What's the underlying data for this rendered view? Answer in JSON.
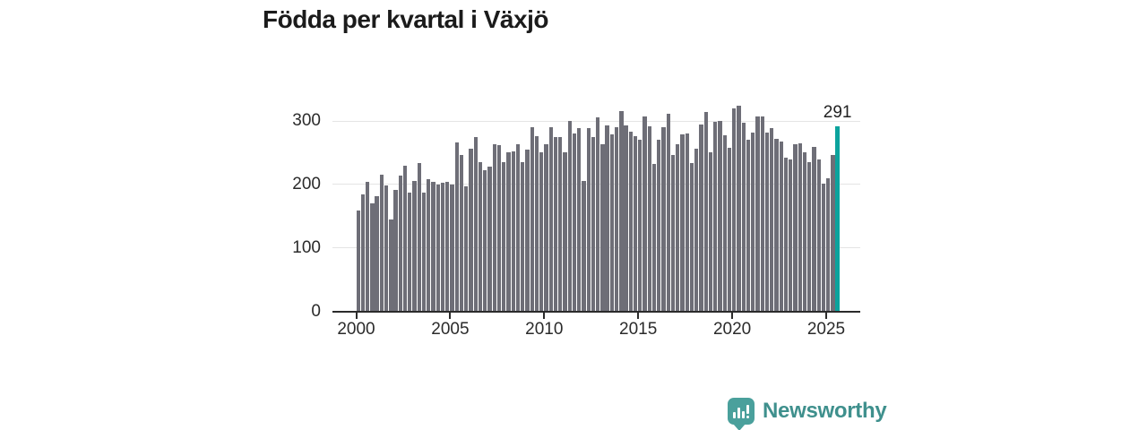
{
  "title": "Födda per kvartal i Växjö",
  "annotation": {
    "last_value_label": "291"
  },
  "logo": {
    "text": "Newsworthy"
  },
  "colors": {
    "bar": "#6E6E77",
    "highlight": "#0BA39D",
    "grid": "#E4E4E4",
    "axis": "#2B2B2B",
    "tick_text": "#2B2B2B",
    "title_text": "#1B1B1B",
    "logo_icon": "#4AA09C",
    "logo_text": "#3F908D"
  },
  "chart_data": {
    "type": "bar",
    "title": "Födda per kvartal i Växjö",
    "x_unit": "quarter",
    "x_start": "2000-Q1",
    "x_end": "2025-Q3",
    "x_tick_labels": [
      "2000",
      "2005",
      "2010",
      "2015",
      "2020",
      "2025"
    ],
    "y_ticks": [
      0,
      100,
      200,
      300
    ],
    "ylim": [
      0,
      340
    ],
    "grid": "horizontal",
    "legend": "none",
    "highlight_last_bar": true,
    "highlight_value": 291,
    "values": [
      158,
      183,
      203,
      169,
      181,
      214,
      198,
      144,
      190,
      213,
      229,
      186,
      205,
      233,
      187,
      208,
      204,
      199,
      202,
      203,
      199,
      266,
      246,
      196,
      255,
      274,
      235,
      222,
      227,
      263,
      261,
      235,
      250,
      251,
      263,
      234,
      254,
      290,
      276,
      250,
      262,
      290,
      274,
      274,
      250,
      299,
      280,
      288,
      205,
      288,
      274,
      305,
      262,
      292,
      278,
      290,
      315,
      292,
      283,
      276,
      269,
      306,
      291,
      232,
      269,
      290,
      310,
      246,
      263,
      278,
      279,
      233,
      256,
      293,
      314,
      250,
      298,
      299,
      277,
      257,
      319,
      324,
      297,
      269,
      281,
      307,
      307,
      281,
      288,
      271,
      267,
      241,
      239,
      263,
      264,
      250,
      234,
      258,
      239,
      201,
      209,
      246,
      291
    ]
  }
}
